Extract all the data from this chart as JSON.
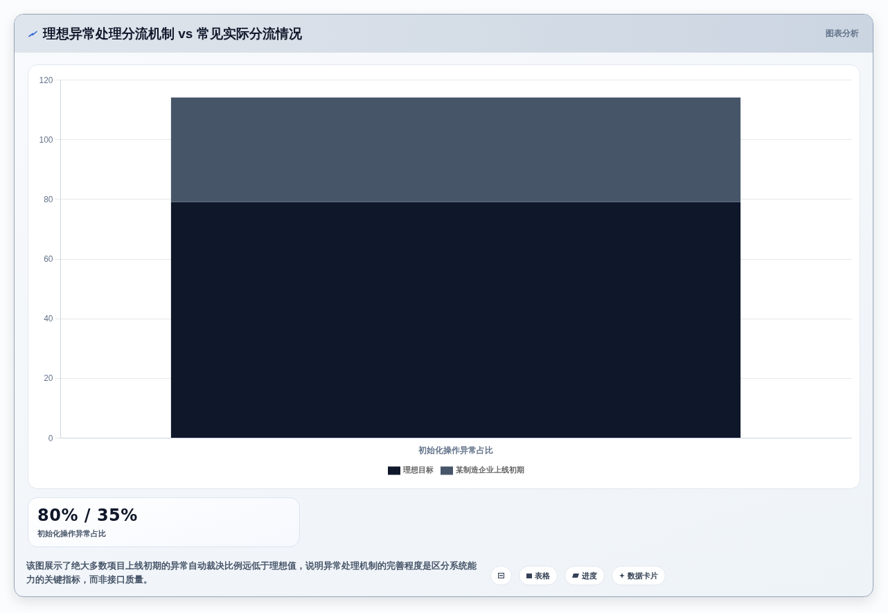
{
  "chart_data": {
    "type": "bar",
    "title": "理想异常处理分流机制 vs 常见实际分流情况",
    "categories": [
      "初始化操作异常占比"
    ],
    "series": [
      {
        "name": "理想目标",
        "color": "#0f172a",
        "values": [
          79
        ]
      },
      {
        "name": "某制造企业上线初期",
        "color": "#475569",
        "values": [
          35
        ]
      }
    ],
    "stacked": true,
    "ylim": [
      0,
      120
    ],
    "yticks": [
      0,
      20,
      40,
      60,
      80,
      100,
      120
    ],
    "grid": "y",
    "legend": "bottom",
    "annotations": [
      "图表分析",
      "80% / 35%",
      "初始化操作异常占比",
      "该图展示了绝大多数项目上线初期的异常自动裁决比例远低于理想值，说明异常处理机制的完善程度是区分系统能力的关键指标，而非接口质量。",
      "表格",
      "进度",
      "数据卡片"
    ]
  }
}
